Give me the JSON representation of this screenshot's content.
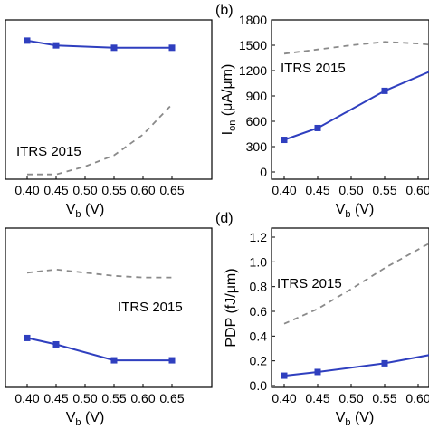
{
  "chart_data": [
    {
      "panel": "a",
      "panel_label": "",
      "type": "line",
      "x": [
        0.4,
        0.45,
        0.55,
        0.65
      ],
      "x_ticks": [
        "0.40",
        "0.45",
        "0.50",
        "0.55",
        "0.60",
        "0.65"
      ],
      "y_ticks": [],
      "xlabel_main": "V",
      "xlabel_sub": "b",
      "xlabel_unit": " (V)",
      "ylabel": "",
      "annotation": "ITRS 2015",
      "series": [
        {
          "values": [
            0.87,
            0.84,
            0.825,
            0.825
          ],
          "color": "#2f3fbf",
          "marker": "square",
          "style": "solid"
        },
        {
          "x": [
            0.4,
            0.45,
            0.5,
            0.55,
            0.6,
            0.65
          ],
          "values": [
            0.03,
            0.03,
            0.08,
            0.15,
            0.28,
            0.47
          ],
          "color": "#8a8a8a",
          "style": "dashed"
        }
      ]
    },
    {
      "panel": "b",
      "panel_label": "(b)",
      "type": "line",
      "x": [
        0.4,
        0.45,
        0.55,
        0.65
      ],
      "x_ticks": [
        "0.40",
        "0.45",
        "0.50",
        "0.55",
        "0.60"
      ],
      "y_ticks": [
        "0",
        "300",
        "600",
        "900",
        "1200",
        "1500",
        "1800"
      ],
      "ylim": [
        -60,
        1800
      ],
      "xlabel_main": "V",
      "xlabel_sub": "b",
      "xlabel_unit": " (V)",
      "ylabel_main": "I",
      "ylabel_sub": "on",
      "ylabel_unit": " (μA/μm)",
      "annotation": "ITRS 2015",
      "series": [
        {
          "values": [
            380,
            520,
            960,
            1300
          ],
          "color": "#2f3fbf",
          "marker": "square",
          "style": "solid"
        },
        {
          "x": [
            0.4,
            0.45,
            0.5,
            0.55,
            0.6,
            0.65
          ],
          "values": [
            1400,
            1450,
            1500,
            1540,
            1520,
            1480
          ],
          "color": "#8a8a8a",
          "style": "dashed"
        }
      ]
    },
    {
      "panel": "c",
      "panel_label": "",
      "type": "line",
      "x": [
        0.4,
        0.45,
        0.55,
        0.65
      ],
      "x_ticks": [
        "0.40",
        "0.45",
        "0.50",
        "0.55",
        "0.60",
        "0.65"
      ],
      "y_ticks": [],
      "xlabel_main": "V",
      "xlabel_sub": "b",
      "xlabel_unit": " (V)",
      "ylabel": "",
      "annotation": "ITRS 2015",
      "series": [
        {
          "values": [
            0.31,
            0.27,
            0.17,
            0.17
          ],
          "color": "#2f3fbf",
          "marker": "square",
          "style": "solid"
        },
        {
          "x": [
            0.4,
            0.45,
            0.5,
            0.55,
            0.6,
            0.65
          ],
          "values": [
            0.72,
            0.74,
            0.72,
            0.7,
            0.69,
            0.69
          ],
          "color": "#8a8a8a",
          "style": "dashed"
        }
      ]
    },
    {
      "panel": "d",
      "panel_label": "(d)",
      "type": "line",
      "x": [
        0.4,
        0.45,
        0.55,
        0.65
      ],
      "x_ticks": [
        "0.40",
        "0.45",
        "0.50",
        "0.55",
        "0.60"
      ],
      "y_ticks": [
        "0.0",
        "0.2",
        "0.4",
        "0.6",
        "0.8",
        "1.0",
        "1.2"
      ],
      "ylim": [
        0,
        1.2
      ],
      "xlabel_main": "V",
      "xlabel_sub": "b",
      "xlabel_unit": " (V)",
      "ylabel": "PDP (fJ/μm)",
      "annotation": "ITRS 2015",
      "series": [
        {
          "values": [
            0.08,
            0.11,
            0.18,
            0.28
          ],
          "color": "#2f3fbf",
          "marker": "square",
          "style": "solid"
        },
        {
          "x": [
            0.4,
            0.45,
            0.5,
            0.55,
            0.6,
            0.65
          ],
          "values": [
            0.5,
            0.62,
            0.78,
            0.95,
            1.1,
            1.25
          ],
          "color": "#8a8a8a",
          "style": "dashed"
        }
      ]
    }
  ]
}
